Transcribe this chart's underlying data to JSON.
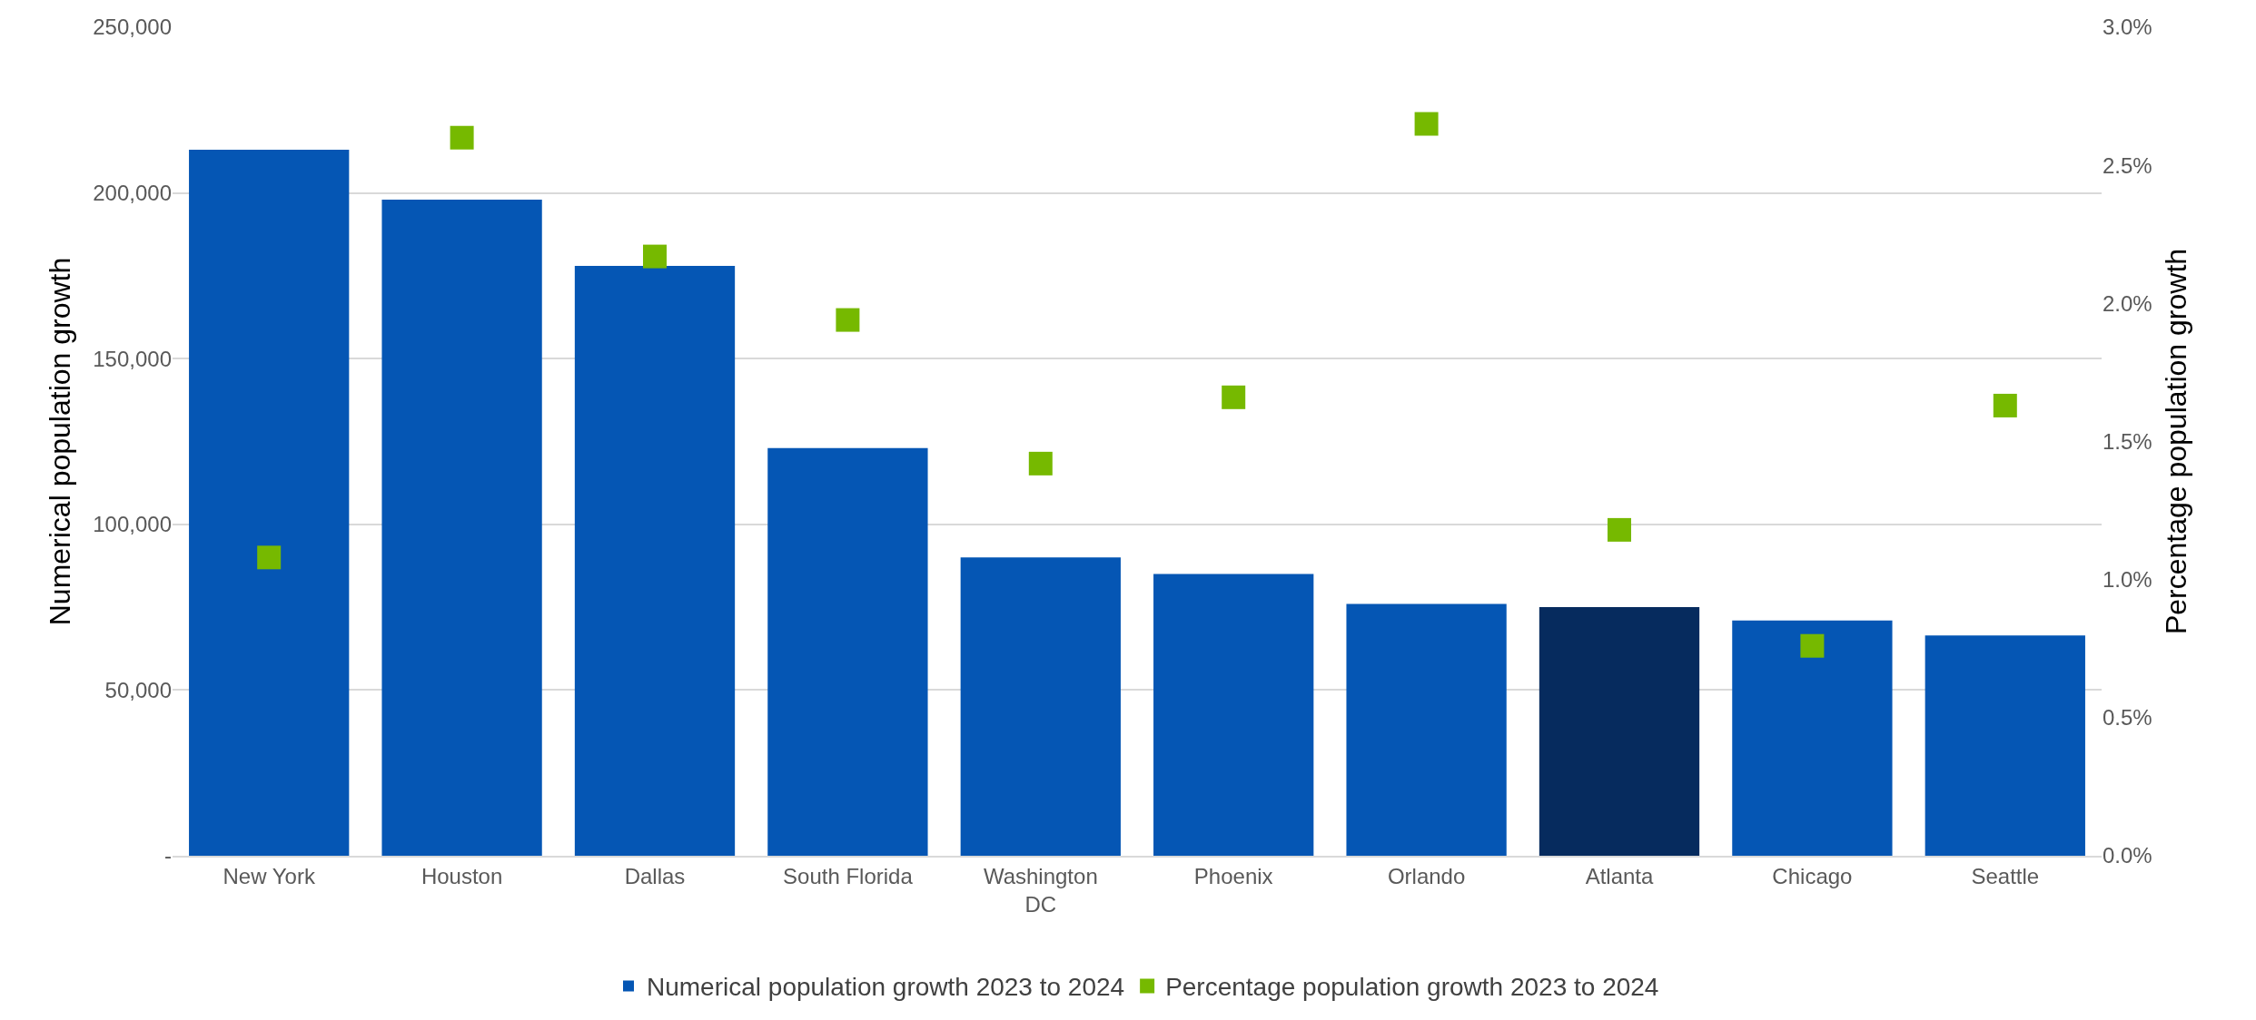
{
  "chart_data": {
    "type": "bar",
    "ylabel": "Numerical population growth",
    "y2label": "Percentage population growth",
    "categories": [
      "New York",
      "Houston",
      "Dallas",
      "South Florida",
      "Washington\nDC",
      "Phoenix",
      "Orlando",
      "Atlanta",
      "Chicago",
      "Seattle"
    ],
    "series": [
      {
        "name": "Numerical population growth 2023 to 2024",
        "colors": [
          "#0556b4",
          "#0556b4",
          "#0556b4",
          "#0556b4",
          "#0556b4",
          "#0556b4",
          "#0556b4",
          "#062b5e",
          "#0556b4",
          "#0556b4"
        ],
        "values": [
          213000,
          198000,
          178000,
          123000,
          90000,
          85000,
          76000,
          75000,
          71000,
          66500
        ]
      },
      {
        "name": "Percentage population growth 2023 to 2024",
        "type": "scatter",
        "axis": "y2",
        "color": "#76b900",
        "values": [
          1.08,
          2.6,
          2.17,
          1.94,
          1.42,
          1.66,
          2.65,
          1.18,
          0.76,
          1.63
        ]
      }
    ],
    "ylim": [
      0,
      250000
    ],
    "yticks": [
      {
        "value": 0,
        "label": "-"
      },
      {
        "value": 50000,
        "label": "50,000"
      },
      {
        "value": 100000,
        "label": "100,000"
      },
      {
        "value": 150000,
        "label": "150,000"
      },
      {
        "value": 200000,
        "label": "200,000"
      },
      {
        "value": 250000,
        "label": "250,000"
      }
    ],
    "y2lim": [
      0,
      3
    ],
    "y2ticks": [
      {
        "value": 0,
        "label": "0.0%"
      },
      {
        "value": 0.5,
        "label": "0.5%"
      },
      {
        "value": 1,
        "label": "1.0%"
      },
      {
        "value": 1.5,
        "label": "1.5%"
      },
      {
        "value": 2,
        "label": "2.0%"
      },
      {
        "value": 2.5,
        "label": "2.5%"
      },
      {
        "value": 3,
        "label": "3.0%"
      }
    ],
    "grid": "y",
    "legend": "bottom",
    "marker": "square"
  }
}
